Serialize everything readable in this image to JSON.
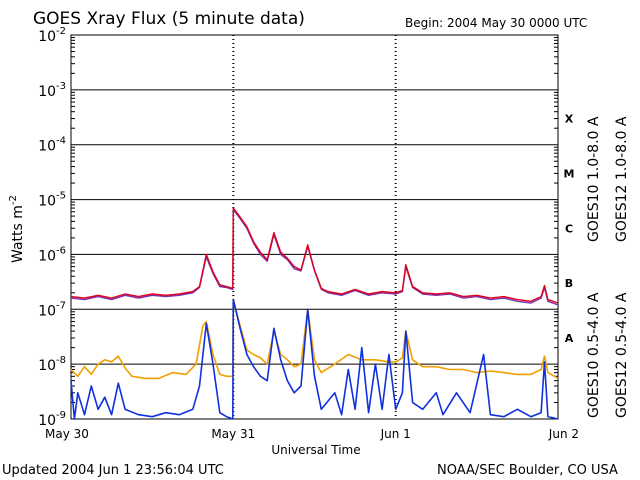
{
  "header": {
    "title": "GOES Xray Flux (5 minute data)",
    "begin": "Begin:  2004 May 30 0000 UTC"
  },
  "footer": {
    "updated": "Updated 2004 Jun  1 23:56:04 UTC",
    "credit": "NOAA/SEC Boulder, CO USA"
  },
  "colors": {
    "goes10_long": "#7a2fb0",
    "goes12_long": "#e0001a",
    "goes10_short": "#f0a000",
    "goes12_short": "#1030e0",
    "grid": "#000000"
  },
  "chart_data": {
    "type": "line",
    "title": "GOES Xray Flux (5 minute data)",
    "xlabel": "Universal Time",
    "ylabel": "Watts m",
    "ylabel_sup": "-2",
    "y_scale": "log",
    "ylim": [
      1e-09,
      0.01
    ],
    "xlim": [
      "2004-05-30T00:00",
      "2004-06-02T00:00"
    ],
    "x_ticks": [
      "May 30",
      "May 31",
      "Jun 1",
      "Jun 2"
    ],
    "y_ticks": [
      {
        "value": 1e-09,
        "base": "10",
        "exp": "-9"
      },
      {
        "value": 1e-08,
        "base": "10",
        "exp": "-8"
      },
      {
        "value": 1e-07,
        "base": "10",
        "exp": "-7"
      },
      {
        "value": 1e-06,
        "base": "10",
        "exp": "-6"
      },
      {
        "value": 1e-05,
        "base": "10",
        "exp": "-5"
      },
      {
        "value": 0.0001,
        "base": "10",
        "exp": "-4"
      },
      {
        "value": 0.001,
        "base": "10",
        "exp": "-3"
      },
      {
        "value": 0.01,
        "base": "10",
        "exp": "-2"
      }
    ],
    "flare_classes": [
      {
        "label": "A",
        "value": 3e-08
      },
      {
        "label": "B",
        "value": 3e-07
      },
      {
        "label": "C",
        "value": 3e-06
      },
      {
        "label": "M",
        "value": 3e-05
      },
      {
        "label": "X",
        "value": 0.0003
      }
    ],
    "grid": true,
    "legend_placement": "right-vertical",
    "series": [
      {
        "name": "GOES10 1.0-8.0 A",
        "color": "#7a2fb0",
        "points": [
          [
            "2004-05-30T00:00",
            1.6e-07
          ],
          [
            "2004-05-30T02:00",
            1.5e-07
          ],
          [
            "2004-05-30T04:00",
            1.7e-07
          ],
          [
            "2004-05-30T06:00",
            1.5e-07
          ],
          [
            "2004-05-30T08:00",
            1.8e-07
          ],
          [
            "2004-05-30T10:00",
            1.6e-07
          ],
          [
            "2004-05-30T12:00",
            1.8e-07
          ],
          [
            "2004-05-30T14:00",
            1.7e-07
          ],
          [
            "2004-05-30T16:00",
            1.8e-07
          ],
          [
            "2004-05-30T18:00",
            2e-07
          ],
          [
            "2004-05-30T19:00",
            2.5e-07
          ],
          [
            "2004-05-30T20:00",
            9e-07
          ],
          [
            "2004-05-30T21:00",
            4.5e-07
          ],
          [
            "2004-05-30T22:00",
            2.6e-07
          ],
          [
            "2004-05-30T23:00",
            2.5e-07
          ],
          [
            "2004-05-30T23:55",
            2.3e-07
          ],
          [
            "2004-05-31T00:00",
            6.5e-06
          ],
          [
            "2004-05-31T01:00",
            4.5e-06
          ],
          [
            "2004-05-31T02:00",
            3e-06
          ],
          [
            "2004-05-31T03:00",
            1.6e-06
          ],
          [
            "2004-05-31T04:00",
            1e-06
          ],
          [
            "2004-05-31T05:00",
            7.5e-07
          ],
          [
            "2004-05-31T06:00",
            2.3e-06
          ],
          [
            "2004-05-31T07:00",
            1e-06
          ],
          [
            "2004-05-31T08:00",
            8e-07
          ],
          [
            "2004-05-31T09:00",
            5.5e-07
          ],
          [
            "2004-05-31T10:00",
            5e-07
          ],
          [
            "2004-05-31T11:00",
            1.4e-06
          ],
          [
            "2004-05-31T12:00",
            5e-07
          ],
          [
            "2004-05-31T13:00",
            2.3e-07
          ],
          [
            "2004-05-31T14:00",
            2e-07
          ],
          [
            "2004-05-31T16:00",
            1.8e-07
          ],
          [
            "2004-05-31T18:00",
            2.2e-07
          ],
          [
            "2004-05-31T20:00",
            1.8e-07
          ],
          [
            "2004-05-31T22:00",
            2e-07
          ],
          [
            "2004-06-01T00:00",
            1.9e-07
          ],
          [
            "2004-06-01T01:00",
            2.1e-07
          ],
          [
            "2004-06-01T01:30",
            6e-07
          ],
          [
            "2004-06-01T02:30",
            2.5e-07
          ],
          [
            "2004-06-01T04:00",
            1.9e-07
          ],
          [
            "2004-06-01T06:00",
            1.8e-07
          ],
          [
            "2004-06-01T08:00",
            1.9e-07
          ],
          [
            "2004-06-01T10:00",
            1.6e-07
          ],
          [
            "2004-06-01T12:00",
            1.7e-07
          ],
          [
            "2004-06-01T14:00",
            1.5e-07
          ],
          [
            "2004-06-01T16:00",
            1.6e-07
          ],
          [
            "2004-06-01T18:00",
            1.4e-07
          ],
          [
            "2004-06-01T20:00",
            1.3e-07
          ],
          [
            "2004-06-01T21:30",
            1.6e-07
          ],
          [
            "2004-06-01T22:00",
            2.5e-07
          ],
          [
            "2004-06-01T22:30",
            1.4e-07
          ],
          [
            "2004-06-02T00:00",
            1.2e-07
          ]
        ]
      },
      {
        "name": "GOES12 1.0-8.0 A",
        "color": "#e0001a",
        "points": [
          [
            "2004-05-30T00:00",
            1.7e-07
          ],
          [
            "2004-05-30T02:00",
            1.6e-07
          ],
          [
            "2004-05-30T04:00",
            1.8e-07
          ],
          [
            "2004-05-30T06:00",
            1.6e-07
          ],
          [
            "2004-05-30T08:00",
            1.9e-07
          ],
          [
            "2004-05-30T10:00",
            1.7e-07
          ],
          [
            "2004-05-30T12:00",
            1.9e-07
          ],
          [
            "2004-05-30T14:00",
            1.8e-07
          ],
          [
            "2004-05-30T16:00",
            1.9e-07
          ],
          [
            "2004-05-30T18:00",
            2.1e-07
          ],
          [
            "2004-05-30T19:00",
            2.6e-07
          ],
          [
            "2004-05-30T20:00",
            1e-06
          ],
          [
            "2004-05-30T21:00",
            4.8e-07
          ],
          [
            "2004-05-30T22:00",
            2.8e-07
          ],
          [
            "2004-05-30T23:00",
            2.6e-07
          ],
          [
            "2004-05-30T23:55",
            2.4e-07
          ],
          [
            "2004-05-31T00:00",
            7e-06
          ],
          [
            "2004-05-31T01:00",
            4.8e-06
          ],
          [
            "2004-05-31T02:00",
            3.2e-06
          ],
          [
            "2004-05-31T03:00",
            1.7e-06
          ],
          [
            "2004-05-31T04:00",
            1.1e-06
          ],
          [
            "2004-05-31T05:00",
            8e-07
          ],
          [
            "2004-05-31T06:00",
            2.5e-06
          ],
          [
            "2004-05-31T07:00",
            1.1e-06
          ],
          [
            "2004-05-31T08:00",
            8.5e-07
          ],
          [
            "2004-05-31T09:00",
            6e-07
          ],
          [
            "2004-05-31T10:00",
            5.2e-07
          ],
          [
            "2004-05-31T11:00",
            1.5e-06
          ],
          [
            "2004-05-31T12:00",
            5.2e-07
          ],
          [
            "2004-05-31T13:00",
            2.4e-07
          ],
          [
            "2004-05-31T14:00",
            2.1e-07
          ],
          [
            "2004-05-31T16:00",
            1.9e-07
          ],
          [
            "2004-05-31T18:00",
            2.3e-07
          ],
          [
            "2004-05-31T20:00",
            1.9e-07
          ],
          [
            "2004-05-31T22:00",
            2.1e-07
          ],
          [
            "2004-06-01T00:00",
            2e-07
          ],
          [
            "2004-06-01T01:00",
            2.2e-07
          ],
          [
            "2004-06-01T01:30",
            6.5e-07
          ],
          [
            "2004-06-01T02:30",
            2.6e-07
          ],
          [
            "2004-06-01T04:00",
            2e-07
          ],
          [
            "2004-06-01T06:00",
            1.9e-07
          ],
          [
            "2004-06-01T08:00",
            2e-07
          ],
          [
            "2004-06-01T10:00",
            1.7e-07
          ],
          [
            "2004-06-01T12:00",
            1.8e-07
          ],
          [
            "2004-06-01T14:00",
            1.6e-07
          ],
          [
            "2004-06-01T16:00",
            1.7e-07
          ],
          [
            "2004-06-01T18:00",
            1.5e-07
          ],
          [
            "2004-06-01T20:00",
            1.4e-07
          ],
          [
            "2004-06-01T21:30",
            1.7e-07
          ],
          [
            "2004-06-01T22:00",
            2.7e-07
          ],
          [
            "2004-06-01T22:30",
            1.5e-07
          ],
          [
            "2004-06-02T00:00",
            1.3e-07
          ]
        ]
      },
      {
        "name": "GOES10 0.5-4.0 A",
        "color": "#f0a000",
        "points": [
          [
            "2004-05-30T00:00",
            8e-09
          ],
          [
            "2004-05-30T01:00",
            6e-09
          ],
          [
            "2004-05-30T02:00",
            9e-09
          ],
          [
            "2004-05-30T03:00",
            6.5e-09
          ],
          [
            "2004-05-30T04:00",
            1e-08
          ],
          [
            "2004-05-30T05:00",
            1.2e-08
          ],
          [
            "2004-05-30T06:00",
            1.1e-08
          ],
          [
            "2004-05-30T07:00",
            1.4e-08
          ],
          [
            "2004-05-30T08:00",
            8.5e-09
          ],
          [
            "2004-05-30T09:00",
            6e-09
          ],
          [
            "2004-05-30T11:00",
            5.5e-09
          ],
          [
            "2004-05-30T13:00",
            5.5e-09
          ],
          [
            "2004-05-30T15:00",
            7e-09
          ],
          [
            "2004-05-30T17:00",
            6.5e-09
          ],
          [
            "2004-05-30T18:30",
            1e-08
          ],
          [
            "2004-05-30T19:30",
            5e-08
          ],
          [
            "2004-05-30T20:00",
            6e-08
          ],
          [
            "2004-05-30T21:00",
            1.5e-08
          ],
          [
            "2004-05-30T22:00",
            6.5e-09
          ],
          [
            "2004-05-30T23:00",
            6e-09
          ],
          [
            "2004-05-30T23:55",
            6e-09
          ],
          [
            "2004-05-31T00:00",
            1.5e-07
          ],
          [
            "2004-05-31T01:00",
            5e-08
          ],
          [
            "2004-05-31T02:00",
            1.8e-08
          ],
          [
            "2004-05-31T03:00",
            1.5e-08
          ],
          [
            "2004-05-31T04:00",
            1.3e-08
          ],
          [
            "2004-05-31T05:00",
            1e-08
          ],
          [
            "2004-05-31T06:00",
            4e-08
          ],
          [
            "2004-05-31T07:00",
            1.5e-08
          ],
          [
            "2004-05-31T08:00",
            1.2e-08
          ],
          [
            "2004-05-31T09:00",
            9e-09
          ],
          [
            "2004-05-31T10:00",
            1e-08
          ],
          [
            "2004-05-31T11:00",
            1e-07
          ],
          [
            "2004-05-31T12:00",
            1.2e-08
          ],
          [
            "2004-05-31T13:00",
            7e-09
          ],
          [
            "2004-05-31T15:00",
            1e-08
          ],
          [
            "2004-05-31T17:00",
            1.5e-08
          ],
          [
            "2004-05-31T19:00",
            1.2e-08
          ],
          [
            "2004-05-31T21:00",
            1.2e-08
          ],
          [
            "2004-05-31T23:00",
            1.1e-08
          ],
          [
            "2004-06-01T00:00",
            1.1e-08
          ],
          [
            "2004-06-01T01:00",
            1.3e-08
          ],
          [
            "2004-06-01T01:30",
            4e-08
          ],
          [
            "2004-06-01T02:30",
            1.2e-08
          ],
          [
            "2004-06-01T04:00",
            9e-09
          ],
          [
            "2004-06-01T06:00",
            9e-09
          ],
          [
            "2004-06-01T08:00",
            8e-09
          ],
          [
            "2004-06-01T10:00",
            8e-09
          ],
          [
            "2004-06-01T12:00",
            7e-09
          ],
          [
            "2004-06-01T14:00",
            7.5e-09
          ],
          [
            "2004-06-01T16:00",
            7e-09
          ],
          [
            "2004-06-01T18:00",
            6.5e-09
          ],
          [
            "2004-06-01T20:00",
            6.5e-09
          ],
          [
            "2004-06-01T21:30",
            8e-09
          ],
          [
            "2004-06-01T22:00",
            1.4e-08
          ],
          [
            "2004-06-01T22:30",
            7e-09
          ],
          [
            "2004-06-02T00:00",
            5.5e-09
          ]
        ]
      },
      {
        "name": "GOES12 0.5-4.0 A",
        "color": "#1030e0",
        "points": [
          [
            "2004-05-30T00:00",
            5e-09
          ],
          [
            "2004-05-30T00:30",
            1e-09
          ],
          [
            "2004-05-30T01:00",
            3e-09
          ],
          [
            "2004-05-30T02:00",
            1.2e-09
          ],
          [
            "2004-05-30T03:00",
            4e-09
          ],
          [
            "2004-05-30T04:00",
            1.5e-09
          ],
          [
            "2004-05-30T05:00",
            2.5e-09
          ],
          [
            "2004-05-30T06:00",
            1.2e-09
          ],
          [
            "2004-05-30T07:00",
            4.5e-09
          ],
          [
            "2004-05-30T08:00",
            1.5e-09
          ],
          [
            "2004-05-30T10:00",
            1.2e-09
          ],
          [
            "2004-05-30T12:00",
            1.1e-09
          ],
          [
            "2004-05-30T14:00",
            1.3e-09
          ],
          [
            "2004-05-30T16:00",
            1.2e-09
          ],
          [
            "2004-05-30T18:00",
            1.5e-09
          ],
          [
            "2004-05-30T19:00",
            4e-09
          ],
          [
            "2004-05-30T20:00",
            5.5e-08
          ],
          [
            "2004-05-30T21:00",
            1e-08
          ],
          [
            "2004-05-30T22:00",
            1.3e-09
          ],
          [
            "2004-05-30T23:00",
            1.1e-09
          ],
          [
            "2004-05-30T23:55",
            1e-09
          ],
          [
            "2004-05-31T00:00",
            1.5e-07
          ],
          [
            "2004-05-31T01:00",
            4.5e-08
          ],
          [
            "2004-05-31T02:00",
            1.5e-08
          ],
          [
            "2004-05-31T03:00",
            9e-09
          ],
          [
            "2004-05-31T04:00",
            6e-09
          ],
          [
            "2004-05-31T05:00",
            5e-09
          ],
          [
            "2004-05-31T06:00",
            4.5e-08
          ],
          [
            "2004-05-31T07:00",
            1.2e-08
          ],
          [
            "2004-05-31T08:00",
            5e-09
          ],
          [
            "2004-05-31T09:00",
            3e-09
          ],
          [
            "2004-05-31T10:00",
            4e-09
          ],
          [
            "2004-05-31T11:00",
            1e-07
          ],
          [
            "2004-05-31T12:00",
            6e-09
          ],
          [
            "2004-05-31T13:00",
            1.5e-09
          ],
          [
            "2004-05-31T15:00",
            3e-09
          ],
          [
            "2004-05-31T16:00",
            1.2e-09
          ],
          [
            "2004-05-31T17:00",
            8e-09
          ],
          [
            "2004-05-31T18:00",
            1.5e-09
          ],
          [
            "2004-05-31T19:00",
            2e-08
          ],
          [
            "2004-05-31T20:00",
            1.3e-09
          ],
          [
            "2004-05-31T21:00",
            1e-08
          ],
          [
            "2004-05-31T22:00",
            1.5e-09
          ],
          [
            "2004-05-31T23:00",
            1.5e-08
          ],
          [
            "2004-06-01T00:00",
            1.5e-09
          ],
          [
            "2004-06-01T01:00",
            3e-09
          ],
          [
            "2004-06-01T01:30",
            4e-08
          ],
          [
            "2004-06-01T02:30",
            2e-09
          ],
          [
            "2004-06-01T04:00",
            1.5e-09
          ],
          [
            "2004-06-01T06:00",
            3e-09
          ],
          [
            "2004-06-01T07:00",
            1.2e-09
          ],
          [
            "2004-06-01T09:00",
            3e-09
          ],
          [
            "2004-06-01T11:00",
            1.3e-09
          ],
          [
            "2004-06-01T13:00",
            1.5e-08
          ],
          [
            "2004-06-01T14:00",
            1.2e-09
          ],
          [
            "2004-06-01T16:00",
            1.1e-09
          ],
          [
            "2004-06-01T18:00",
            1.5e-09
          ],
          [
            "2004-06-01T20:00",
            1.1e-09
          ],
          [
            "2004-06-01T21:30",
            1.3e-09
          ],
          [
            "2004-06-01T22:00",
            1.1e-08
          ],
          [
            "2004-06-01T22:30",
            1.1e-09
          ],
          [
            "2004-06-02T00:00",
            1e-09
          ]
        ]
      }
    ]
  }
}
